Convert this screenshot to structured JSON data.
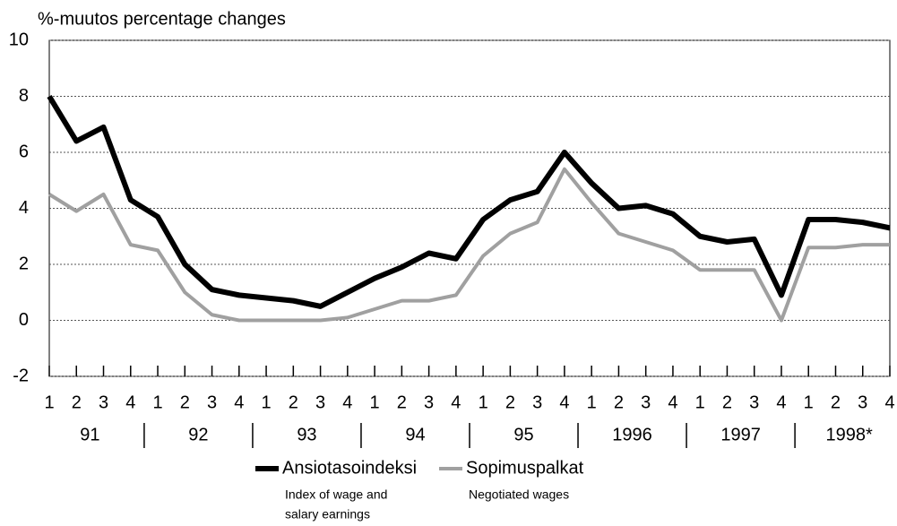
{
  "chart_data": {
    "type": "line",
    "title": "%-muutos  percentage changes",
    "categories": [
      "1",
      "2",
      "3",
      "4",
      "1",
      "2",
      "3",
      "4",
      "1",
      "2",
      "3",
      "4",
      "1",
      "2",
      "3",
      "4",
      "1",
      "2",
      "3",
      "4",
      "1",
      "2",
      "3",
      "4",
      "1",
      "2",
      "3",
      "4",
      "1",
      "2",
      "3",
      "4"
    ],
    "year_labels": [
      "91",
      "92",
      "93",
      "94",
      "95",
      "1996",
      "1997",
      "1998*"
    ],
    "series": [
      {
        "name": "Ansiotasoindeksi",
        "color": "#000000",
        "width": 6,
        "notes": [
          "Index of wage and",
          "salary earnings"
        ],
        "values": [
          8.0,
          6.4,
          6.9,
          4.3,
          3.7,
          2.0,
          1.1,
          0.9,
          0.8,
          0.7,
          0.5,
          1.0,
          1.5,
          1.9,
          2.4,
          2.2,
          3.6,
          4.3,
          4.6,
          6.0,
          4.9,
          4.0,
          4.1,
          3.8,
          3.0,
          2.8,
          2.9,
          0.9,
          3.6,
          3.6,
          3.5,
          3.3
        ]
      },
      {
        "name": "Sopimuspalkat",
        "color": "#a0a0a0",
        "width": 4,
        "notes": [
          "Negotiated wages"
        ],
        "values": [
          4.5,
          3.9,
          4.5,
          2.7,
          2.5,
          1.0,
          0.2,
          0.0,
          0.0,
          0.0,
          0.0,
          0.1,
          0.4,
          0.7,
          0.7,
          0.9,
          2.3,
          3.1,
          3.5,
          5.4,
          4.2,
          3.1,
          2.8,
          2.5,
          1.8,
          1.8,
          1.8,
          0.0,
          2.6,
          2.6,
          2.7,
          2.7
        ]
      }
    ],
    "ylim": [
      -2,
      10
    ],
    "yticks": [
      -2,
      0,
      2,
      4,
      6,
      8,
      10
    ],
    "grid": true
  }
}
